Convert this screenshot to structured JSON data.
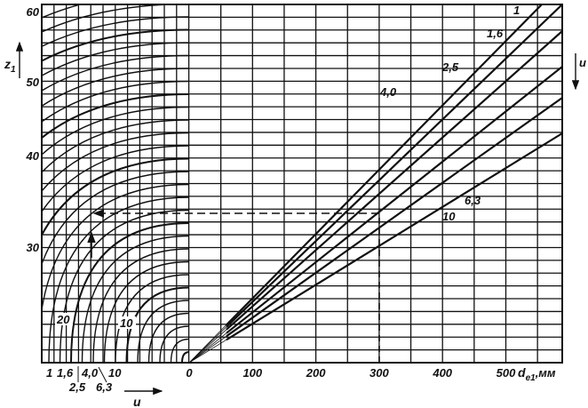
{
  "chart_data": {
    "type": "line",
    "title": "",
    "xlabel": "d_e1, мм",
    "xlabel_main": "d",
    "xlabel_sub": "e1",
    "xlabel_unit": ",мм",
    "ylabel": "z1",
    "ylabel_main": "z",
    "ylabel_sub": "1",
    "x_ticks": [
      "0",
      "100",
      "200",
      "300",
      "400",
      "500"
    ],
    "xlim": [
      0,
      590
    ],
    "y_ticks": [
      "30",
      "40",
      "50",
      "60"
    ],
    "ylim": [
      15,
      60
    ],
    "grid": true,
    "u_axis_label": "u",
    "u_left_ticks": [
      "1",
      "1,6",
      "2,5",
      "4,0",
      "6,3",
      "10"
    ],
    "curve_labels": [
      "20",
      "10"
    ],
    "series": [
      {
        "name": "1",
        "slope_z_per_mm": 0.115
      },
      {
        "name": "1,6",
        "slope_z_per_mm": 0.108
      },
      {
        "name": "2,5",
        "slope_z_per_mm": 0.098
      },
      {
        "name": "4,0",
        "slope_z_per_mm": 0.088
      },
      {
        "name": "6,3",
        "slope_z_per_mm": 0.08
      },
      {
        "name": "10",
        "slope_z_per_mm": 0.07
      }
    ],
    "example": {
      "d_e1": 300,
      "z1": 34,
      "u": 4.0
    }
  }
}
